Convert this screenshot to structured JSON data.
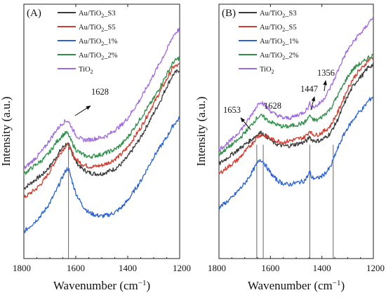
{
  "chart_data": [
    {
      "type": "line",
      "panel_label": "(A)",
      "xlabel": "Wavenumber (cm−1)",
      "ylabel": "Intensity (a.u.)",
      "xlim": [
        1800,
        1200
      ],
      "xaxis_reversed": true,
      "x_ticks": [
        "1800",
        "1600",
        "1400",
        "1200"
      ],
      "y_ticks_shown": false,
      "legend_position": "top-left",
      "grid": false,
      "x": [
        1800,
        1775,
        1750,
        1725,
        1700,
        1675,
        1650,
        1635,
        1628,
        1620,
        1600,
        1575,
        1550,
        1525,
        1500,
        1475,
        1450,
        1425,
        1400,
        1375,
        1350,
        1325,
        1300,
        1275,
        1250,
        1225,
        1200
      ],
      "series": [
        {
          "name": "Au/TiO2_S3",
          "label_parts": [
            "Au/TiO",
            "2",
            "_S3"
          ],
          "color": "#3a3a3a",
          "values": [
            0.44,
            0.46,
            0.48,
            0.5,
            0.53,
            0.57,
            0.61,
            0.625,
            0.62,
            0.6,
            0.55,
            0.52,
            0.505,
            0.5,
            0.5,
            0.51,
            0.52,
            0.54,
            0.57,
            0.61,
            0.65,
            0.7,
            0.75,
            0.8,
            0.86,
            0.91,
            0.93
          ]
        },
        {
          "name": "Au/TiO2_S5",
          "label_parts": [
            "Au/TiO",
            "2",
            "_S5"
          ],
          "color": "#d23b2d",
          "values": [
            0.4,
            0.42,
            0.44,
            0.47,
            0.51,
            0.56,
            0.6,
            0.62,
            0.615,
            0.6,
            0.56,
            0.54,
            0.53,
            0.53,
            0.535,
            0.545,
            0.56,
            0.58,
            0.61,
            0.65,
            0.69,
            0.74,
            0.79,
            0.84,
            0.89,
            0.94,
            0.95
          ]
        },
        {
          "name": "Au/TiO2_1%",
          "label_parts": [
            "Au/TiO",
            "2",
            "_1%"
          ],
          "color": "#2a62d6",
          "values": [
            0.26,
            0.285,
            0.31,
            0.34,
            0.38,
            0.43,
            0.49,
            0.52,
            0.52,
            0.49,
            0.42,
            0.37,
            0.34,
            0.33,
            0.325,
            0.33,
            0.34,
            0.36,
            0.39,
            0.43,
            0.47,
            0.52,
            0.57,
            0.61,
            0.65,
            0.7,
            0.73
          ]
        },
        {
          "name": "Au/TiO2_2%",
          "label_parts": [
            "Au/TiO",
            "2",
            "_2%"
          ],
          "color": "#2e8f4a",
          "values": [
            0.5,
            0.52,
            0.54,
            0.56,
            0.59,
            0.63,
            0.66,
            0.67,
            0.66,
            0.64,
            0.6,
            0.58,
            0.57,
            0.575,
            0.58,
            0.59,
            0.6,
            0.62,
            0.65,
            0.69,
            0.73,
            0.77,
            0.81,
            0.86,
            0.91,
            0.96,
            0.98
          ]
        },
        {
          "name": "TiO2",
          "label_parts": [
            "TiO",
            "2",
            ""
          ],
          "color": "#a06ae0",
          "values": [
            0.52,
            0.545,
            0.57,
            0.6,
            0.64,
            0.68,
            0.71,
            0.72,
            0.715,
            0.7,
            0.66,
            0.64,
            0.64,
            0.645,
            0.65,
            0.66,
            0.68,
            0.7,
            0.73,
            0.77,
            0.81,
            0.86,
            0.91,
            0.96,
            1.01,
            1.07,
            1.1
          ]
        }
      ],
      "annotations": [
        {
          "text": "1628",
          "x": 1628,
          "arrow": true
        }
      ]
    },
    {
      "type": "line",
      "panel_label": "(B)",
      "xlabel": "Wavenumber (cm−1)",
      "ylabel": "Intensity (a.u.)",
      "xlim": [
        1800,
        1200
      ],
      "xaxis_reversed": true,
      "x_ticks": [
        "1800",
        "1600",
        "1400",
        "1200"
      ],
      "y_ticks_shown": false,
      "legend_position": "top-left",
      "grid": false,
      "x": [
        1800,
        1775,
        1750,
        1725,
        1700,
        1675,
        1653,
        1640,
        1628,
        1610,
        1590,
        1570,
        1550,
        1530,
        1510,
        1490,
        1470,
        1455,
        1447,
        1440,
        1420,
        1400,
        1380,
        1365,
        1356,
        1340,
        1320,
        1300,
        1280,
        1260,
        1240,
        1220,
        1200
      ],
      "series": [
        {
          "name": "Au/TiO2_S3",
          "label_parts": [
            "Au/TiO",
            "2",
            "_S3"
          ],
          "color": "#3a3a3a",
          "values": [
            0.54,
            0.56,
            0.58,
            0.6,
            0.62,
            0.64,
            0.66,
            0.67,
            0.665,
            0.65,
            0.63,
            0.62,
            0.615,
            0.615,
            0.62,
            0.625,
            0.63,
            0.64,
            0.655,
            0.64,
            0.635,
            0.64,
            0.655,
            0.67,
            0.69,
            0.72,
            0.77,
            0.82,
            0.86,
            0.89,
            0.91,
            0.94,
            0.95
          ]
        },
        {
          "name": "Au/TiO2_S5",
          "label_parts": [
            "Au/TiO",
            "2",
            "_S5"
          ],
          "color": "#d23b2d",
          "values": [
            0.5,
            0.52,
            0.54,
            0.56,
            0.59,
            0.62,
            0.65,
            0.66,
            0.66,
            0.65,
            0.64,
            0.635,
            0.63,
            0.635,
            0.64,
            0.645,
            0.65,
            0.665,
            0.68,
            0.665,
            0.66,
            0.67,
            0.685,
            0.7,
            0.72,
            0.75,
            0.8,
            0.85,
            0.89,
            0.92,
            0.94,
            0.97,
            0.98
          ]
        },
        {
          "name": "Au/TiO2_1%",
          "label_parts": [
            "Au/TiO",
            "2",
            "_1%"
          ],
          "color": "#2a62d6",
          "values": [
            0.36,
            0.38,
            0.4,
            0.43,
            0.46,
            0.5,
            0.54,
            0.56,
            0.55,
            0.52,
            0.49,
            0.47,
            0.46,
            0.455,
            0.46,
            0.465,
            0.47,
            0.49,
            0.51,
            0.485,
            0.48,
            0.49,
            0.51,
            0.53,
            0.56,
            0.6,
            0.65,
            0.69,
            0.72,
            0.75,
            0.77,
            0.8,
            0.82
          ]
        },
        {
          "name": "Au/TiO2_2%",
          "label_parts": [
            "Au/TiO",
            "2",
            "_2%"
          ],
          "color": "#2e8f4a",
          "values": [
            0.58,
            0.6,
            0.62,
            0.64,
            0.67,
            0.7,
            0.73,
            0.74,
            0.735,
            0.72,
            0.71,
            0.7,
            0.695,
            0.695,
            0.7,
            0.705,
            0.71,
            0.725,
            0.745,
            0.725,
            0.72,
            0.735,
            0.755,
            0.77,
            0.79,
            0.82,
            0.86,
            0.9,
            0.93,
            0.95,
            0.96,
            0.98,
            0.99
          ]
        },
        {
          "name": "TiO2",
          "label_parts": [
            "TiO",
            "2",
            ""
          ],
          "color": "#a06ae0",
          "values": [
            0.6,
            0.62,
            0.64,
            0.67,
            0.7,
            0.74,
            0.78,
            0.8,
            0.79,
            0.77,
            0.75,
            0.74,
            0.73,
            0.73,
            0.735,
            0.745,
            0.755,
            0.77,
            0.79,
            0.775,
            0.78,
            0.8,
            0.83,
            0.86,
            0.88,
            0.92,
            0.97,
            1.01,
            1.04,
            1.07,
            1.09,
            1.12,
            1.15
          ]
        }
      ],
      "annotations": [
        {
          "text": "1653",
          "x": 1653,
          "arrow": true
        },
        {
          "text": "1628",
          "x": 1628,
          "arrow": false
        },
        {
          "text": "1447",
          "x": 1447,
          "arrow": true
        },
        {
          "text": "1356",
          "x": 1356,
          "arrow": true
        }
      ]
    }
  ]
}
